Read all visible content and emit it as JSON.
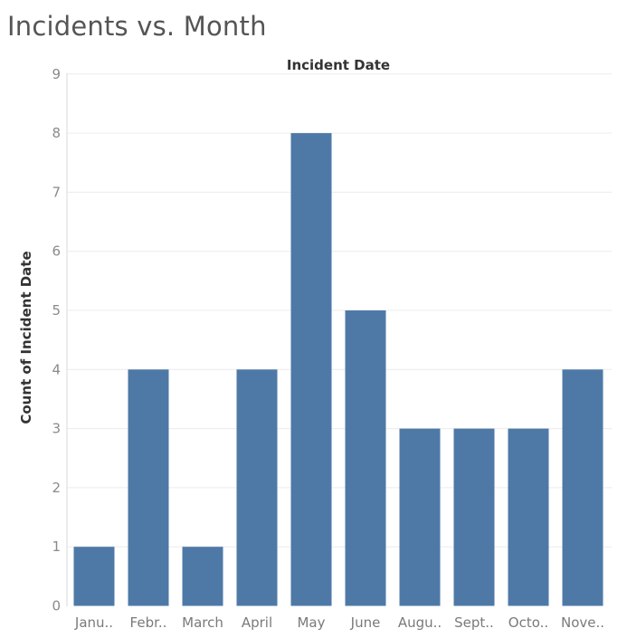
{
  "title": "Incidents vs. Month",
  "chart_data": {
    "type": "bar",
    "xlabel": "Incident Date",
    "ylabel": "Count of Incident Date",
    "categories": [
      "Janu..",
      "Febr..",
      "March",
      "April",
      "May",
      "June",
      "Augu..",
      "Sept..",
      "Octo..",
      "Nove.."
    ],
    "values": [
      1,
      4,
      1,
      4,
      8,
      5,
      3,
      3,
      3,
      4
    ],
    "ylim": [
      0,
      9
    ],
    "yticks": [
      "0",
      "1",
      "2",
      "3",
      "4",
      "5",
      "6",
      "7",
      "8",
      "9"
    ],
    "grid": true,
    "legend": "none",
    "bar_color": "#4e79a7"
  }
}
